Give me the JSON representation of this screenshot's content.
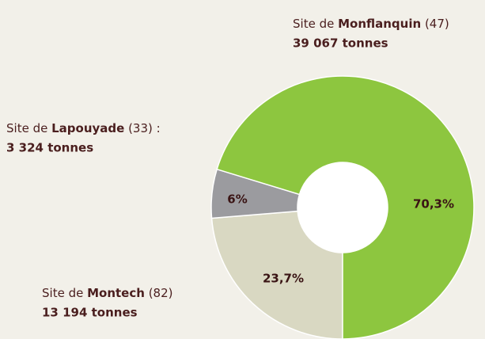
{
  "chart_data": {
    "type": "donut",
    "values": [
      23.7,
      6,
      70.3
    ],
    "value_labels": [
      "23,7%",
      "6%",
      "70,3%"
    ],
    "colors": [
      "#d9d8c2",
      "#9b9b9f",
      "#8dc63f"
    ],
    "annotations": [
      {
        "prefix": "Site de ",
        "name": "Montech",
        "suffix": " (82)",
        "detail": "13 194 tonnes"
      },
      {
        "prefix": "Site de ",
        "name": "Lapouyade",
        "suffix": " (33) :",
        "detail": "3 324 tonnes"
      },
      {
        "prefix": "Site de ",
        "name": "Monflanquin",
        "suffix": " (47)",
        "detail": "39 067 tonnes"
      }
    ]
  }
}
